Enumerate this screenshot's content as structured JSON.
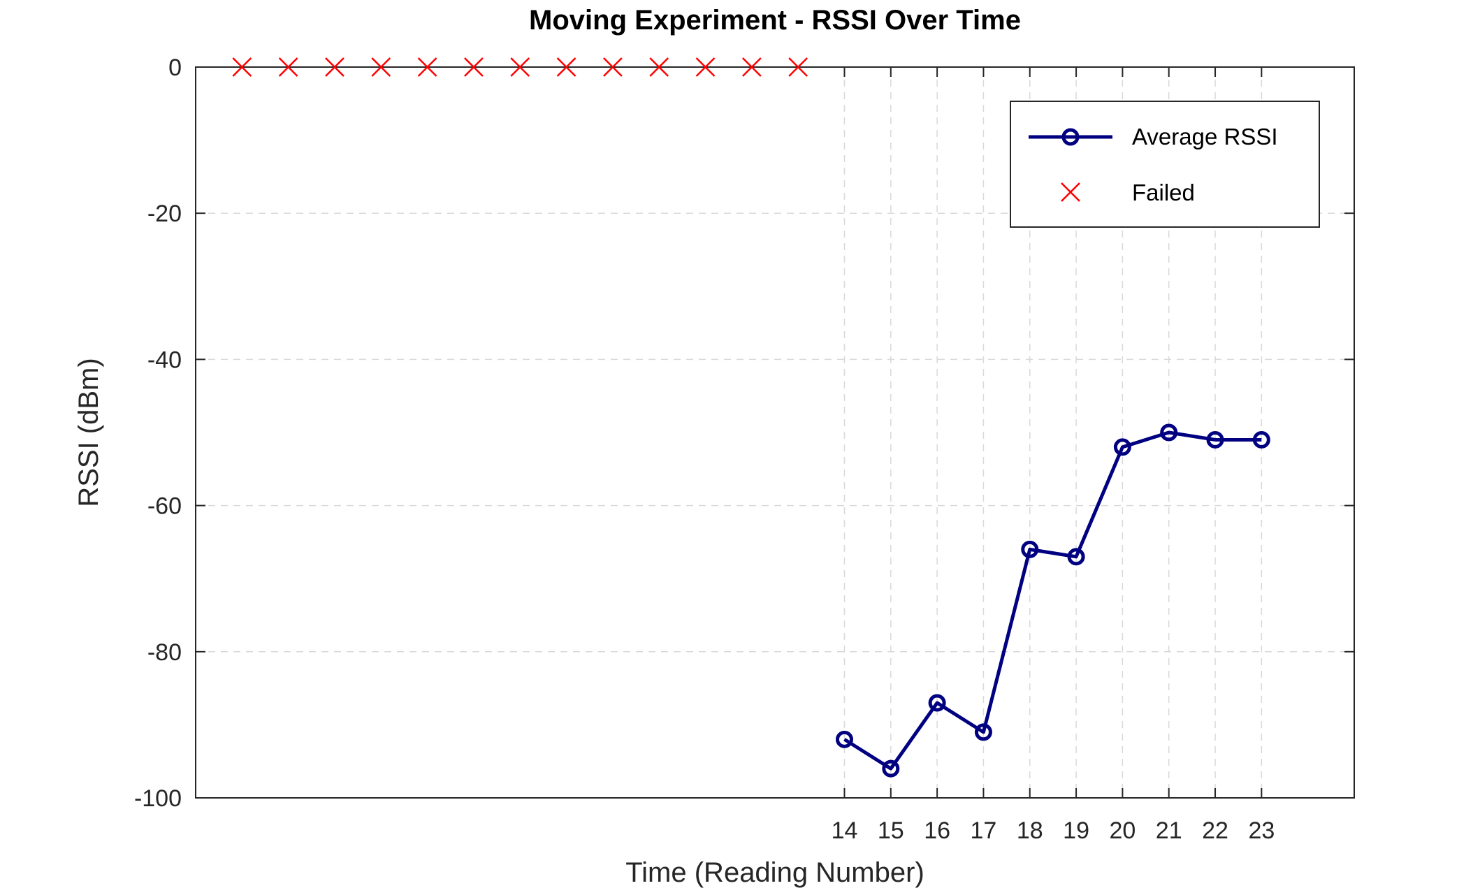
{
  "chart_data": {
    "type": "line",
    "title": "Moving Experiment - RSSI Over Time",
    "xlabel": "Time (Reading Number)",
    "ylabel": "RSSI (dBm)",
    "xlim": [
      0,
      25
    ],
    "ylim": [
      -100,
      0
    ],
    "x_ticks": [
      14,
      15,
      16,
      17,
      18,
      19,
      20,
      21,
      22,
      23
    ],
    "y_ticks": [
      0,
      -20,
      -40,
      -60,
      -80,
      -100
    ],
    "grid": true,
    "legend_position": "top-right",
    "series": [
      {
        "name": "Average RSSI",
        "marker": "circle",
        "color": "#000080",
        "x": [
          14,
          15,
          16,
          17,
          18,
          19,
          20,
          21,
          22,
          23
        ],
        "y": [
          -92,
          -96,
          -87,
          -91,
          -66,
          -67,
          -52,
          -50,
          -51,
          -51
        ]
      },
      {
        "name": "Failed",
        "marker": "x",
        "color": "#ff0000",
        "x": [
          1,
          2,
          3,
          4,
          5,
          6,
          7,
          8,
          9,
          10,
          11,
          12,
          13
        ],
        "y": [
          0,
          0,
          0,
          0,
          0,
          0,
          0,
          0,
          0,
          0,
          0,
          0,
          0
        ]
      }
    ]
  }
}
